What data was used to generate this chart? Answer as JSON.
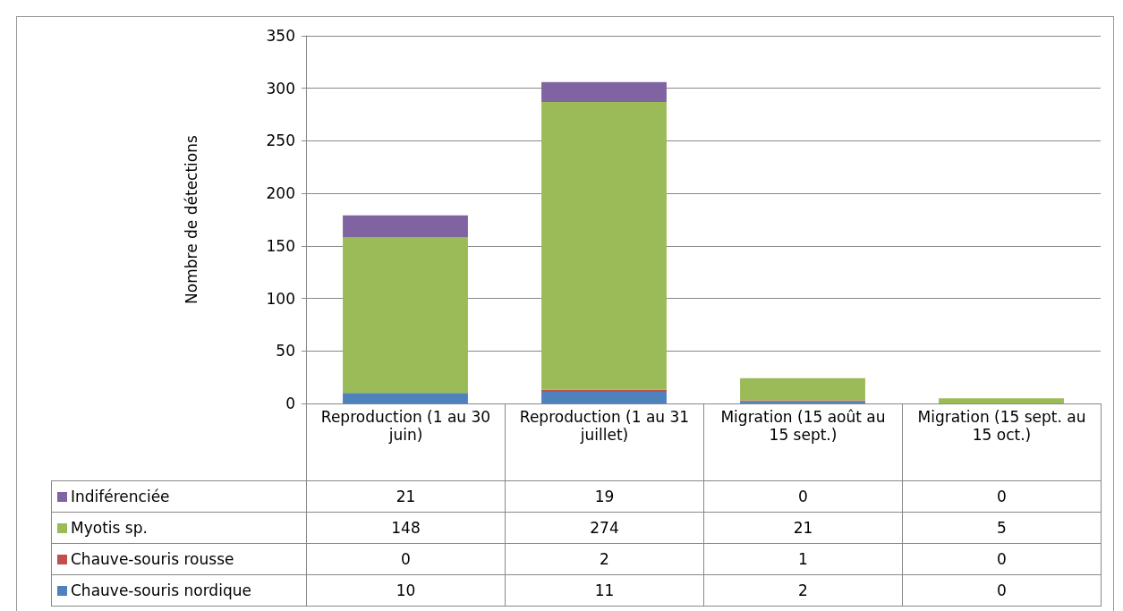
{
  "chart_data": {
    "type": "bar",
    "stacked": true,
    "ylabel": "Nombre de détections",
    "categories": [
      "Reproduction (1 au 30 juin)",
      "Reproduction (1 au 31 juillet)",
      "Migration (15 août au 15 sept.)",
      "Migration (15 sept. au 15 oct.)"
    ],
    "series": [
      {
        "name": "Chauve-souris nordique",
        "color": "#4f81bd",
        "values": [
          10,
          11,
          2,
          0
        ]
      },
      {
        "name": "Chauve-souris rousse",
        "color": "#c0504d",
        "values": [
          0,
          2,
          1,
          0
        ]
      },
      {
        "name": "Myotis sp.",
        "color": "#9bbb59",
        "values": [
          148,
          274,
          21,
          5
        ]
      },
      {
        "name": "Indiférenciée",
        "color": "#8064a2",
        "values": [
          21,
          19,
          0,
          0
        ]
      }
    ],
    "ylim": [
      0,
      350
    ],
    "yticks": [
      0,
      50,
      100,
      150,
      200,
      250,
      300,
      350
    ],
    "grid": "y",
    "legend": "bottom",
    "data_labels": true
  }
}
